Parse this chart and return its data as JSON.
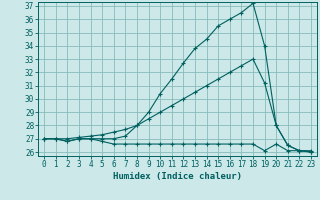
{
  "xlabel": "Humidex (Indice chaleur)",
  "ylabel": "",
  "xlim": [
    -0.5,
    23.5
  ],
  "ylim": [
    25.7,
    37.3
  ],
  "yticks": [
    26,
    27,
    28,
    29,
    30,
    31,
    32,
    33,
    34,
    35,
    36,
    37
  ],
  "xticks": [
    0,
    1,
    2,
    3,
    4,
    5,
    6,
    7,
    8,
    9,
    10,
    11,
    12,
    13,
    14,
    15,
    16,
    17,
    18,
    19,
    20,
    21,
    22,
    23
  ],
  "background_color": "#cce8e8",
  "grid_color": "#88bbbb",
  "line_color": "#006060",
  "line1_x": [
    0,
    1,
    2,
    3,
    4,
    5,
    6,
    7,
    8,
    9,
    10,
    11,
    12,
    13,
    14,
    15,
    16,
    17,
    18,
    19,
    20,
    21,
    22,
    23
  ],
  "line1_y": [
    27.0,
    27.0,
    26.8,
    27.0,
    27.0,
    26.8,
    26.6,
    26.6,
    26.6,
    26.6,
    26.6,
    26.6,
    26.6,
    26.6,
    26.6,
    26.6,
    26.6,
    26.6,
    26.6,
    26.1,
    26.6,
    26.1,
    26.1,
    26.1
  ],
  "line2_x": [
    0,
    1,
    2,
    3,
    4,
    5,
    6,
    7,
    8,
    9,
    10,
    11,
    12,
    13,
    14,
    15,
    16,
    17,
    18,
    19,
    20,
    21,
    22,
    23
  ],
  "line2_y": [
    27.0,
    27.0,
    27.0,
    27.1,
    27.2,
    27.3,
    27.5,
    27.7,
    28.0,
    28.5,
    29.0,
    29.5,
    30.0,
    30.5,
    31.0,
    31.5,
    32.0,
    32.5,
    33.0,
    31.2,
    28.0,
    26.5,
    26.1,
    26.0
  ],
  "line3_x": [
    0,
    1,
    2,
    3,
    4,
    5,
    6,
    7,
    8,
    9,
    10,
    11,
    12,
    13,
    14,
    15,
    16,
    17,
    18,
    19,
    20,
    21,
    22,
    23
  ],
  "line3_y": [
    27.0,
    27.0,
    26.8,
    27.0,
    27.0,
    27.0,
    27.0,
    27.2,
    28.0,
    29.0,
    30.4,
    31.5,
    32.7,
    33.8,
    34.5,
    35.5,
    36.0,
    36.5,
    37.2,
    34.0,
    28.0,
    26.5,
    26.1,
    26.0
  ]
}
